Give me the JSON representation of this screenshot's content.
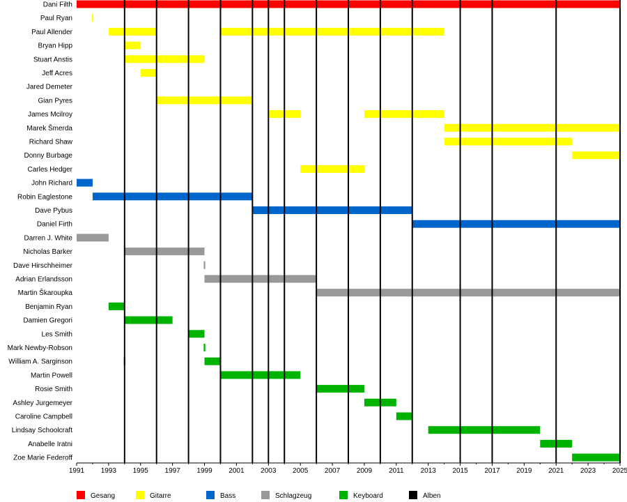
{
  "chart_data": {
    "type": "timeline",
    "x_range": [
      1991,
      2025
    ],
    "x_ticks": [
      "1991",
      "1993",
      "1995",
      "1997",
      "1999",
      "2001",
      "2003",
      "2005",
      "2007",
      "2009",
      "2011",
      "2013",
      "2015",
      "2017",
      "2019",
      "2021",
      "2023",
      "2025"
    ],
    "colors": {
      "vocals": "#ff0000",
      "guitar": "#ffff00",
      "bass": "#0066cc",
      "drums": "#999999",
      "keyboard": "#00b300",
      "albums": "#000000"
    },
    "legend": [
      {
        "key": "vocals",
        "label": "Gesang"
      },
      {
        "key": "guitar",
        "label": "Gitarre"
      },
      {
        "key": "bass",
        "label": "Bass"
      },
      {
        "key": "drums",
        "label": "Schlagzeug"
      },
      {
        "key": "keyboard",
        "label": "Keyboard"
      },
      {
        "key": "albums",
        "label": "Alben"
      }
    ],
    "albums": [
      1994,
      1996,
      1998,
      2000,
      2002,
      2003,
      2004,
      2006,
      2008,
      2010,
      2012,
      2015,
      2017,
      2021,
      2025
    ],
    "members": [
      {
        "name": "Dani Filth",
        "role": "vocals",
        "periods": [
          [
            1991,
            2025
          ]
        ]
      },
      {
        "name": "Paul Ryan",
        "role": "guitar",
        "periods": [
          [
            1991.95,
            1992.05
          ]
        ]
      },
      {
        "name": "Paul Allender",
        "role": "guitar",
        "periods": [
          [
            1993,
            1996
          ],
          [
            2000,
            2014
          ]
        ]
      },
      {
        "name": "Bryan Hipp",
        "role": "guitar",
        "periods": [
          [
            1994,
            1995
          ]
        ]
      },
      {
        "name": "Stuart Anstis",
        "role": "guitar",
        "periods": [
          [
            1994,
            1999
          ]
        ]
      },
      {
        "name": "Jeff Acres",
        "role": "guitar",
        "periods": [
          [
            1995,
            1996
          ]
        ]
      },
      {
        "name": "Jared Demeter",
        "role": "guitar",
        "periods": [
          [
            1995.95,
            1996.05
          ]
        ]
      },
      {
        "name": "Gian Pyres",
        "role": "guitar",
        "periods": [
          [
            1996,
            2002
          ]
        ]
      },
      {
        "name": "James Mcilroy",
        "role": "guitar",
        "periods": [
          [
            2003,
            2005
          ],
          [
            2009,
            2014
          ]
        ]
      },
      {
        "name": "Marek Šmerda",
        "role": "guitar",
        "periods": [
          [
            2014,
            2025
          ]
        ]
      },
      {
        "name": "Richard Shaw",
        "role": "guitar",
        "periods": [
          [
            2014,
            2022
          ]
        ]
      },
      {
        "name": "Donny Burbage",
        "role": "guitar",
        "periods": [
          [
            2022,
            2025
          ]
        ]
      },
      {
        "name": "Carles Hedger",
        "role": "guitar",
        "periods": [
          [
            2005,
            2009
          ]
        ]
      },
      {
        "name": "John Richard",
        "role": "bass",
        "periods": [
          [
            1991,
            1992
          ]
        ]
      },
      {
        "name": "Robin Eaglestone",
        "role": "bass",
        "periods": [
          [
            1992,
            2002
          ]
        ]
      },
      {
        "name": "Dave Pybus",
        "role": "bass",
        "periods": [
          [
            2002,
            2012
          ]
        ]
      },
      {
        "name": "Daniel Firth",
        "role": "bass",
        "periods": [
          [
            2012,
            2025
          ]
        ]
      },
      {
        "name": "Darren J. White",
        "role": "drums",
        "periods": [
          [
            1991,
            1993
          ]
        ]
      },
      {
        "name": "Nicholas Barker",
        "role": "drums",
        "periods": [
          [
            1994,
            1999
          ]
        ]
      },
      {
        "name": "Dave Hirschheimer",
        "role": "drums",
        "periods": [
          [
            1998.95,
            1999.05
          ]
        ]
      },
      {
        "name": "Adrian Erlandsson",
        "role": "drums",
        "periods": [
          [
            1999,
            2006
          ]
        ]
      },
      {
        "name": "Martin Škaroupka",
        "role": "drums",
        "periods": [
          [
            2006,
            2025
          ]
        ]
      },
      {
        "name": "Benjamin Ryan",
        "role": "keyboard",
        "periods": [
          [
            1993,
            1994
          ]
        ]
      },
      {
        "name": "Damien Gregori",
        "role": "keyboard",
        "periods": [
          [
            1994,
            1997
          ]
        ]
      },
      {
        "name": "Les Smith",
        "role": "keyboard",
        "periods": [
          [
            1998,
            1999
          ]
        ]
      },
      {
        "name": "Mark Newby-Robson",
        "role": "keyboard",
        "periods": [
          [
            1998.95,
            1999.05
          ]
        ]
      },
      {
        "name": "William A. Sarginson",
        "role": "keyboard",
        "periods": [
          [
            1993.95,
            1994.05
          ],
          [
            1999,
            2000
          ]
        ]
      },
      {
        "name": "Martin Powell",
        "role": "keyboard",
        "periods": [
          [
            2000,
            2005
          ]
        ]
      },
      {
        "name": "Rosie Smith",
        "role": "keyboard",
        "periods": [
          [
            2006,
            2009
          ]
        ]
      },
      {
        "name": "Ashley Jurgemeyer",
        "role": "keyboard",
        "periods": [
          [
            2009,
            2011
          ]
        ]
      },
      {
        "name": "Caroline Campbell",
        "role": "keyboard",
        "periods": [
          [
            2011,
            2012
          ]
        ]
      },
      {
        "name": "Lindsay Schoolcraft",
        "role": "keyboard",
        "periods": [
          [
            2013,
            2020
          ]
        ]
      },
      {
        "name": "Anabelle Iratni",
        "role": "keyboard",
        "periods": [
          [
            2020,
            2022
          ]
        ]
      },
      {
        "name": "Zoe Marie Federoff",
        "role": "keyboard",
        "periods": [
          [
            2022,
            2025
          ]
        ]
      }
    ]
  }
}
